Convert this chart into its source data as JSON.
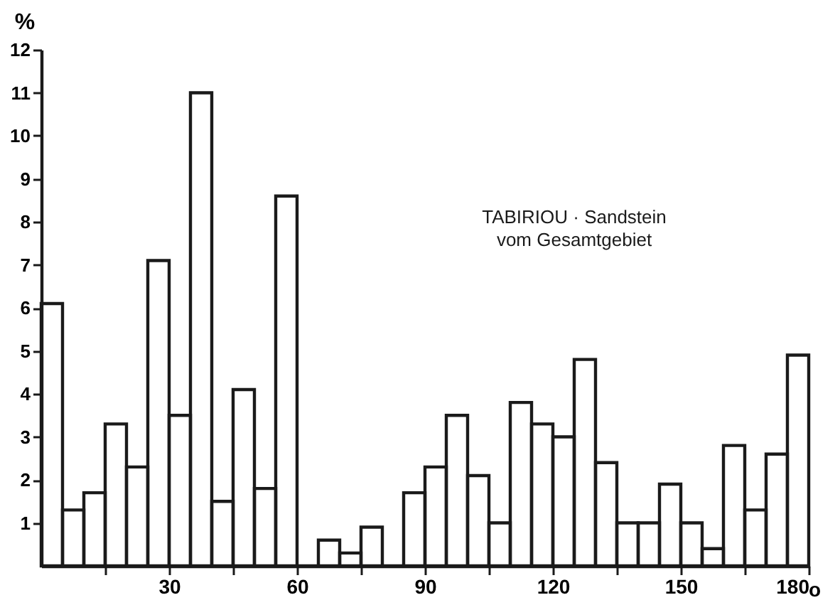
{
  "chart_data": {
    "type": "histogram",
    "xlabel": "o",
    "ylabel": "%",
    "annotations": [
      "TABIRIOU · Sandstein",
      "vom Gesamtgebiet"
    ],
    "bins": [
      0,
      5,
      10,
      15,
      20,
      25,
      30,
      35,
      40,
      45,
      50,
      55,
      60,
      65,
      70,
      75,
      80,
      85,
      90,
      95,
      100,
      105,
      110,
      115,
      120,
      125,
      130,
      135,
      140,
      145,
      150,
      155,
      160,
      165,
      170,
      175,
      180
    ],
    "values": [
      6.1,
      1.3,
      1.7,
      3.3,
      2.3,
      7.1,
      3.5,
      11.0,
      1.5,
      4.1,
      1.8,
      8.6,
      0,
      0.6,
      0.3,
      0.9,
      0,
      1.7,
      2.3,
      3.5,
      2.1,
      1.0,
      3.8,
      3.3,
      3.0,
      4.8,
      2.4,
      1.0,
      1.0,
      1.9,
      1.0,
      0.4,
      2.8,
      1.3,
      2.6,
      4.9
    ],
    "color": "#1a1a1a",
    "xlim": [
      0,
      180
    ],
    "ylim": [
      0,
      12
    ],
    "xticks": [
      {
        "value": 15,
        "label": null
      },
      30,
      {
        "value": 45,
        "label": null
      },
      60,
      {
        "value": 75,
        "label": null
      },
      90,
      {
        "value": 105,
        "label": null
      },
      120,
      {
        "value": 135,
        "label": null
      },
      150,
      {
        "value": 165,
        "label": null
      },
      180
    ],
    "yticks": [
      1,
      2,
      3,
      4,
      5,
      6,
      7,
      8,
      9,
      10,
      11,
      12
    ],
    "grid": false
  }
}
